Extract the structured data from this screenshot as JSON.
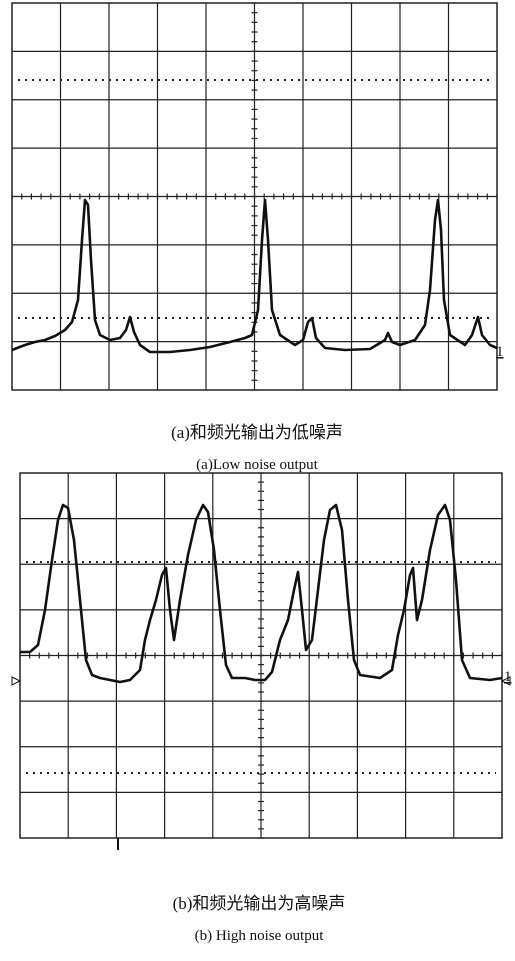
{
  "panel_a": {
    "channel_marker": "1",
    "caption_cn": "(a)和频光输出为低噪声",
    "caption_en": "(a)Low noise output"
  },
  "panel_b": {
    "channel_marker": "1",
    "caption_cn": "(b)和频光输出为高噪声",
    "caption_en": "(b) High noise output"
  }
}
